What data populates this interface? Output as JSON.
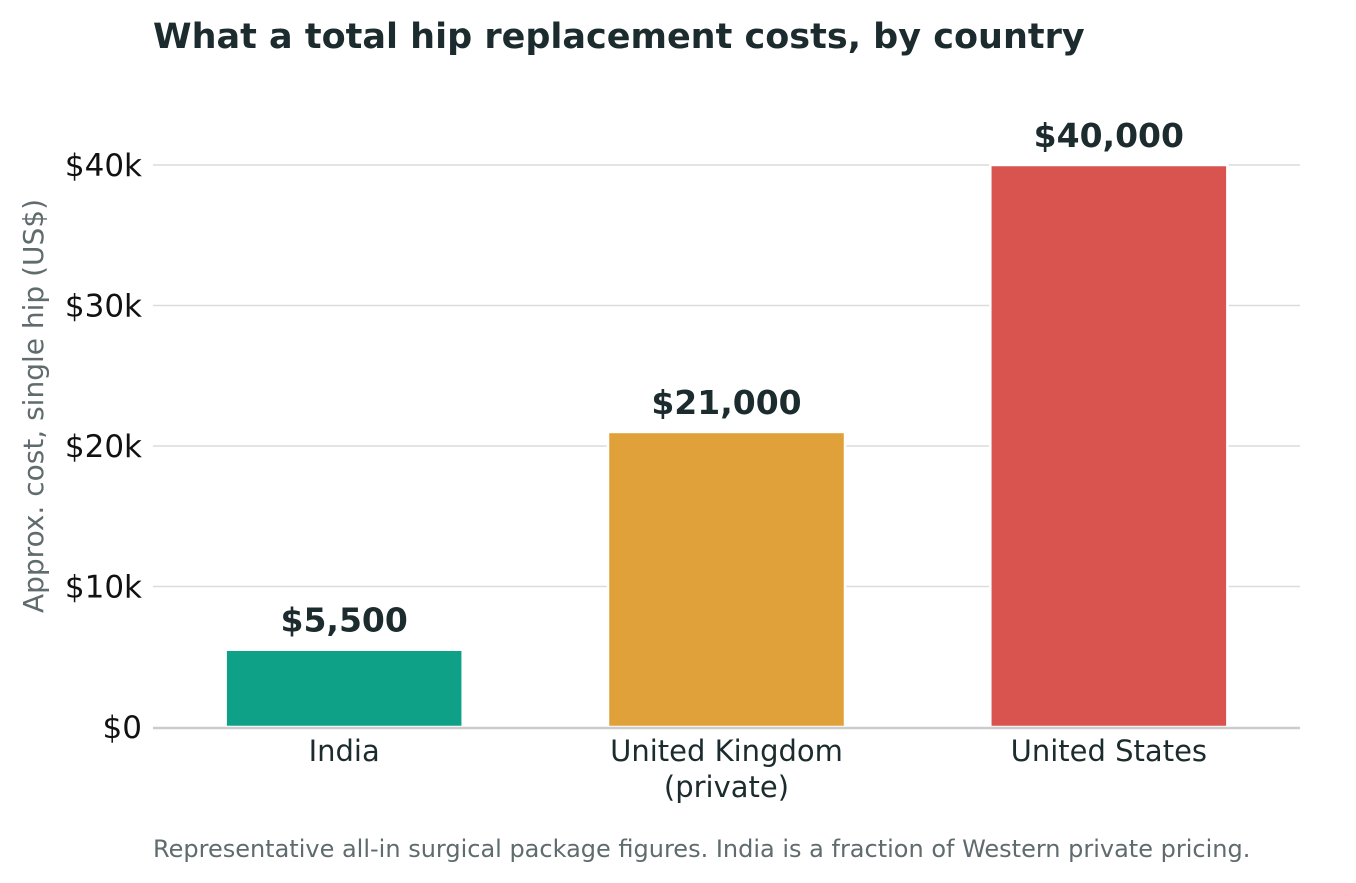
{
  "chart_data": {
    "type": "bar",
    "title": "What a total hip replacement costs, by country",
    "ylabel": "Approx. cost, single hip (US$)",
    "xlabel": "",
    "categories": [
      [
        "India"
      ],
      [
        "United Kingdom",
        "(private)"
      ],
      [
        "United States"
      ]
    ],
    "values": [
      5500,
      21000,
      40000
    ],
    "value_labels": [
      "$5,500",
      "$21,000",
      "$40,000"
    ],
    "colors": [
      "#0fa088",
      "#e0a03a",
      "#d9534f"
    ],
    "ylim": [
      0,
      40000
    ],
    "yticks": [
      0,
      10000,
      20000,
      30000,
      40000
    ],
    "ytick_labels": [
      "$0",
      "$10k",
      "$20k",
      "$30k",
      "$40k"
    ],
    "grid": true,
    "caption": "Representative all-in surgical package figures. India is a fraction of Western private pricing."
  }
}
